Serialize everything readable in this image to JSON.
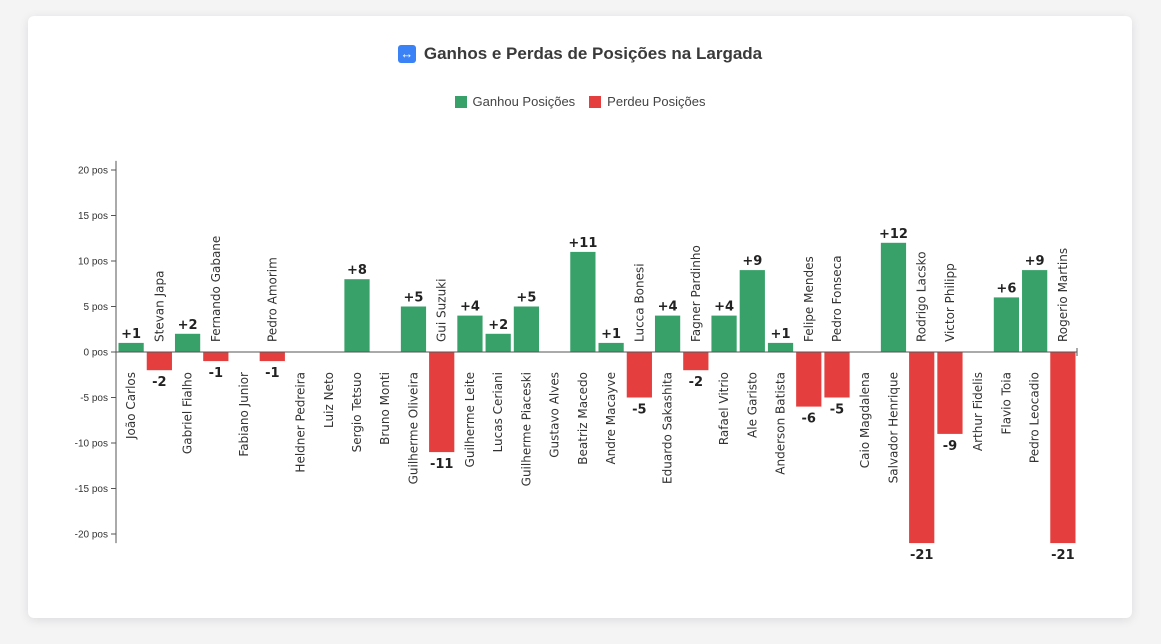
{
  "title": "Ganhos e Perdas de Posições na Largada",
  "title_icon": "↔",
  "colors": {
    "gain": "#38a169",
    "loss": "#e53e3e"
  },
  "chart_data": {
    "type": "bar",
    "title": "Ganhos e Perdas de Posições na Largada",
    "legend": [
      "Ganhou Posições",
      "Perdeu Posições"
    ],
    "legend_position": "top-center",
    "ylim": [
      -21,
      21
    ],
    "yticks": [
      20,
      15,
      10,
      5,
      0,
      -5,
      -10,
      -15,
      -20
    ],
    "ytick_labels": [
      "20 pos",
      "15 pos",
      "10 pos",
      "5 pos",
      "0 pos",
      "-5 pos",
      "-10 pos",
      "-15 pos",
      "-20 pos"
    ],
    "grid": false,
    "categories": [
      "João Carlos",
      "Stevan Japa",
      "Gabriel Fialho",
      "Fernando Gabane",
      "Fabiano Junior",
      "Pedro Amorim",
      "Heldner Pedreira",
      "Luiz Neto",
      "Sergio Tetsuo",
      "Bruno Monti",
      "Guilherme Oliveira",
      "Gui Suzuki",
      "Guilherme Leite",
      "Lucas Ceriani",
      "Guilherme Piaceski",
      "Gustavo Alves",
      "Beatriz Macedo",
      "Andre Macayve",
      "Lucca Bonesi",
      "Eduardo Sakashita",
      "Fagner Pardinho",
      "Rafael Vitrio",
      "Ale Garisto",
      "Anderson Batista",
      "Felipe Mendes",
      "Pedro Fonseca",
      "Caio Magdalena",
      "Salvador Henrique",
      "Rodrigo Lacsko",
      "Victor Philipp",
      "Arthur Fidelis",
      "Flavio Toia",
      "Pedro Leocadio",
      "Rogerio Martins"
    ],
    "values": [
      1,
      -2,
      2,
      -1,
      0,
      -1,
      0,
      0,
      8,
      0,
      5,
      -11,
      4,
      2,
      5,
      0,
      11,
      1,
      -5,
      4,
      -2,
      4,
      9,
      1,
      -6,
      -5,
      0,
      12,
      -21,
      -9,
      0,
      6,
      9,
      -21
    ],
    "value_labels": [
      "+1",
      "-2",
      "+2",
      "-1",
      "",
      "-1",
      "",
      "",
      "+8",
      "",
      "+5",
      "-11",
      "+4",
      "+2",
      "+5",
      "",
      "+11",
      "+1",
      "-5",
      "+4",
      "-2",
      "+4",
      "+9",
      "+1",
      "-6",
      "-5",
      "",
      "+12",
      "-21",
      "-9",
      "",
      "+6",
      "+9",
      "-21"
    ]
  }
}
